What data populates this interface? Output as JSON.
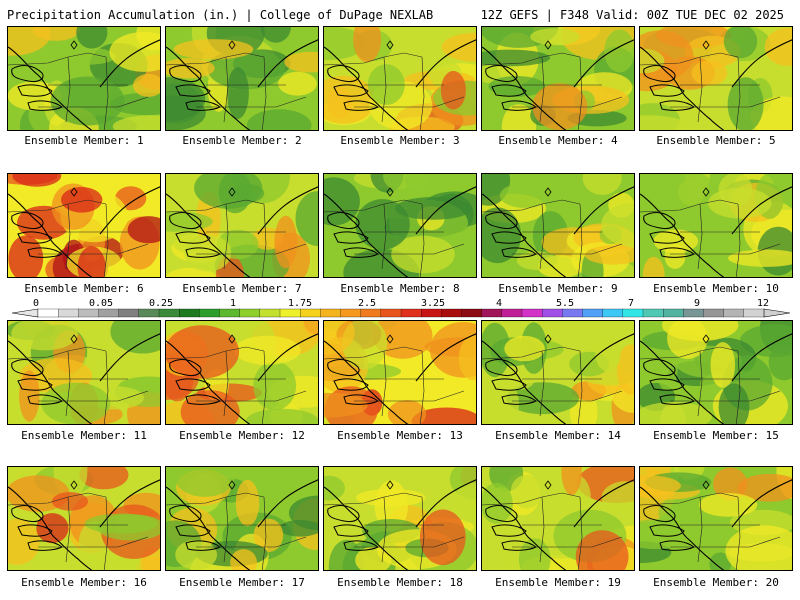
{
  "header": {
    "title": "Precipitation Accumulation (in.) | College of DuPage NEXLAB",
    "run_info": "12Z GEFS | F348 Valid: 00Z TUE DEC 02 2025"
  },
  "panels": [
    {
      "label": "Ensemble Member: 1",
      "wet": 0.35
    },
    {
      "label": "Ensemble Member: 2",
      "wet": 0.3
    },
    {
      "label": "Ensemble Member: 3",
      "wet": 0.55
    },
    {
      "label": "Ensemble Member: 4",
      "wet": 0.35
    },
    {
      "label": "Ensemble Member: 5",
      "wet": 0.45
    },
    {
      "label": "Ensemble Member: 6",
      "wet": 0.8
    },
    {
      "label": "Ensemble Member: 7",
      "wet": 0.45
    },
    {
      "label": "Ensemble Member: 8",
      "wet": 0.15
    },
    {
      "label": "Ensemble Member: 9",
      "wet": 0.35
    },
    {
      "label": "Ensemble Member: 10",
      "wet": 0.3
    },
    {
      "label": "Ensemble Member: 11",
      "wet": 0.4
    },
    {
      "label": "Ensemble Member: 12",
      "wet": 0.55
    },
    {
      "label": "Ensemble Member: 13",
      "wet": 0.65
    },
    {
      "label": "Ensemble Member: 14",
      "wet": 0.45
    },
    {
      "label": "Ensemble Member: 15",
      "wet": 0.3
    },
    {
      "label": "Ensemble Member: 16",
      "wet": 0.6
    },
    {
      "label": "Ensemble Member: 17",
      "wet": 0.3
    },
    {
      "label": "Ensemble Member: 18",
      "wet": 0.5
    },
    {
      "label": "Ensemble Member: 19",
      "wet": 0.55
    },
    {
      "label": "Ensemble Member: 20",
      "wet": 0.35
    }
  ],
  "colorbar": {
    "tick_labels": [
      "0",
      "0.05",
      "0.25",
      "1",
      "1.75",
      "2.5",
      "3.25",
      "4",
      "5.5",
      "7",
      "9",
      "12"
    ],
    "colors": [
      "#ffffff",
      "#d9d9d9",
      "#bdbdbd",
      "#a0a0a0",
      "#808080",
      "#5a8a5a",
      "#3a8a3a",
      "#1e7a1e",
      "#2c9e2c",
      "#5cb82e",
      "#8fcf2c",
      "#c3e02e",
      "#eef02c",
      "#f5d21e",
      "#f5b41e",
      "#f59a1e",
      "#f07a1e",
      "#e8561e",
      "#e0301e",
      "#c81414",
      "#a80c0c",
      "#8c0a14",
      "#a0145a",
      "#c01e96",
      "#d232c8",
      "#a050e6",
      "#7878f0",
      "#50a0f5",
      "#3cc8f5",
      "#32e6e6",
      "#50c8b4",
      "#50b4a0",
      "#789696",
      "#969696",
      "#b4b4b4",
      "#d2d2d2"
    ]
  }
}
